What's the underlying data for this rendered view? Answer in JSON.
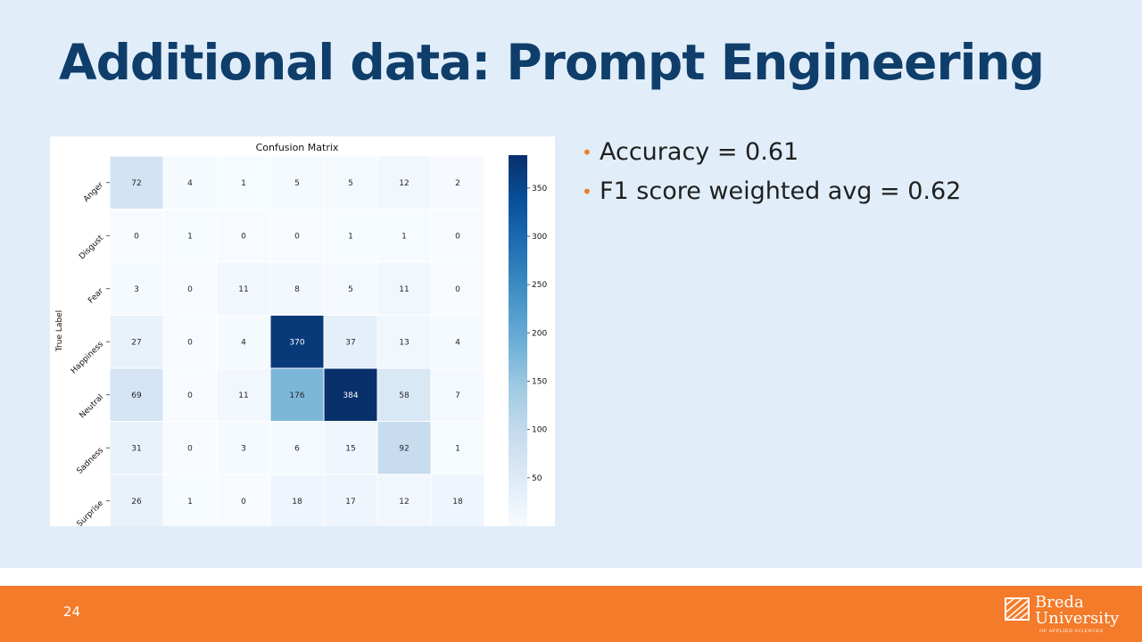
{
  "slide": {
    "title": "Additional data: Prompt Engineering",
    "bullets": [
      "Accuracy = 0.61",
      "F1 score weighted avg = 0.62"
    ],
    "page_number": "24",
    "bullet_color": "#f07d26",
    "title_color": "#0f3e6b",
    "footer_color": "#f37b2a",
    "background_color": "#e1eef9"
  },
  "logo": {
    "line1": "Breda",
    "line2": "University",
    "line3": "OF APPLIED SCIENCES"
  },
  "chart_data": {
    "type": "heatmap",
    "title": "Confusion Matrix",
    "ylabel": "True Label",
    "xlabel": "",
    "rows": [
      "Anger",
      "Disgust",
      "Fear",
      "Happiness",
      "Neutral",
      "Sadness",
      "Surprise"
    ],
    "columns": 7,
    "values": [
      [
        72,
        4,
        1,
        5,
        5,
        12,
        2
      ],
      [
        0,
        1,
        0,
        0,
        1,
        1,
        0
      ],
      [
        3,
        0,
        11,
        8,
        5,
        11,
        0
      ],
      [
        27,
        0,
        4,
        370,
        37,
        13,
        4
      ],
      [
        69,
        0,
        11,
        176,
        384,
        58,
        7
      ],
      [
        31,
        0,
        3,
        6,
        15,
        92,
        1
      ],
      [
        26,
        1,
        0,
        18,
        17,
        12,
        18
      ]
    ],
    "colorbar": {
      "min": 0,
      "max": 384,
      "ticks": [
        50,
        100,
        150,
        200,
        250,
        300,
        350
      ],
      "colormap": "Blues"
    }
  }
}
